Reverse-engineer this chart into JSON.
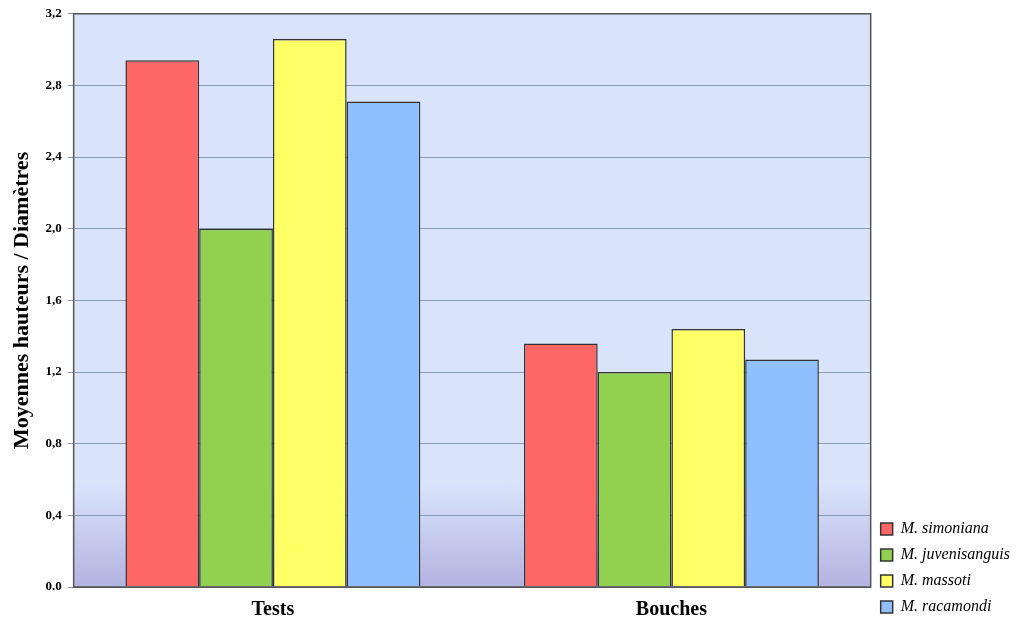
{
  "chart_data": {
    "type": "bar",
    "ylabel": "Moyennes hauteurs / Diamètres",
    "categories": [
      "Tests",
      "Bouches"
    ],
    "series": [
      {
        "name": "M. simoniana",
        "color": "#ff6666",
        "values": [
          2.94,
          1.36
        ]
      },
      {
        "name": "M. juvenisanguis",
        "color": "#92d050",
        "values": [
          2.0,
          1.2
        ]
      },
      {
        "name": "M. massoti",
        "color": "#ffff66",
        "values": [
          3.06,
          1.44
        ]
      },
      {
        "name": "M. racamondi",
        "color": "#8fbfff",
        "values": [
          2.71,
          1.27
        ]
      }
    ],
    "ylim": [
      0,
      3.2
    ],
    "yticks": [
      {
        "value": 0,
        "label": "0.0"
      },
      {
        "value": 0.4,
        "label": "0,4"
      },
      {
        "value": 0.8,
        "label": "0,8"
      },
      {
        "value": 1.2,
        "label": "1,2"
      },
      {
        "value": 1.6,
        "label": "1,6"
      },
      {
        "value": 2.0,
        "label": "2,0"
      },
      {
        "value": 2.4,
        "label": "2,4"
      },
      {
        "value": 2.8,
        "label": "2,8"
      },
      {
        "value": 3.2,
        "label": "3,2"
      }
    ],
    "grid": "y",
    "legend": "bottom right"
  }
}
